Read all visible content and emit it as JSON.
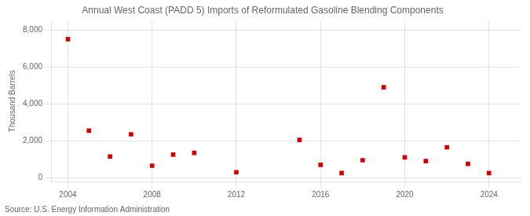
{
  "chart_data": {
    "type": "scatter",
    "title": "Annual West Coast (PADD 5) Imports of Reformulated Gasoline Blending Components",
    "y_label": "Thousand Barrels",
    "annotation": "Source: U.S. Energy Information Administration",
    "x": [
      2004,
      2005,
      2006,
      2007,
      2008,
      2009,
      2010,
      2012,
      2015,
      2016,
      2017,
      2018,
      2019,
      2020,
      2021,
      2022,
      2023,
      2024
    ],
    "values": [
      7500,
      2550,
      1150,
      2350,
      650,
      1250,
      1350,
      300,
      2050,
      700,
      250,
      950,
      4900,
      1100,
      900,
      1650,
      750,
      250
    ],
    "color": "#cc0000",
    "marker": "square",
    "xlim": [
      2003.2,
      2025.5
    ],
    "ylim": [
      -200,
      8500
    ],
    "xticks": [
      2004,
      2008,
      2012,
      2016,
      2020,
      2024
    ],
    "yticks": [
      0,
      {
        "value": 2000,
        "label": "2,000"
      },
      {
        "value": 4000,
        "label": "4,000"
      },
      {
        "value": 6000,
        "label": "6,000"
      },
      {
        "value": 8000,
        "label": "8,000"
      }
    ],
    "grid": true
  }
}
